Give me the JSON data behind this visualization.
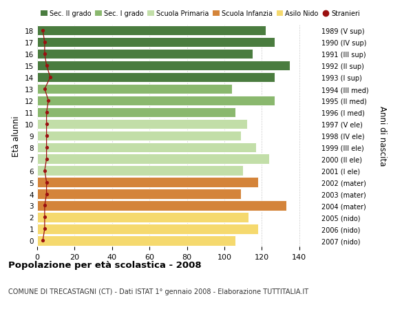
{
  "ages": [
    0,
    1,
    2,
    3,
    4,
    5,
    6,
    7,
    8,
    9,
    10,
    11,
    12,
    13,
    14,
    15,
    16,
    17,
    18
  ],
  "values": [
    106,
    118,
    113,
    133,
    109,
    118,
    110,
    124,
    117,
    109,
    112,
    106,
    127,
    104,
    127,
    135,
    115,
    127,
    122
  ],
  "stranieri": [
    3,
    4,
    4,
    4,
    5,
    5,
    4,
    5,
    5,
    5,
    5,
    5,
    6,
    4,
    7,
    5,
    4,
    4,
    3
  ],
  "bar_colors": [
    "#f5d96e",
    "#f5d96e",
    "#f5d96e",
    "#d4843a",
    "#d4843a",
    "#d4843a",
    "#c2dea8",
    "#c2dea8",
    "#c2dea8",
    "#c2dea8",
    "#c2dea8",
    "#8ab86e",
    "#8ab86e",
    "#8ab86e",
    "#4a7c3f",
    "#4a7c3f",
    "#4a7c3f",
    "#4a7c3f",
    "#4a7c3f"
  ],
  "right_labels_ordered": [
    "2007 (nido)",
    "2006 (nido)",
    "2005 (nido)",
    "2004 (mater)",
    "2003 (mater)",
    "2002 (mater)",
    "2001 (I ele)",
    "2000 (II ele)",
    "1999 (III ele)",
    "1998 (IV ele)",
    "1997 (V ele)",
    "1996 (I med)",
    "1995 (II med)",
    "1994 (III med)",
    "1993 (I sup)",
    "1992 (II sup)",
    "1991 (III sup)",
    "1990 (IV sup)",
    "1989 (V sup)"
  ],
  "legend_labels": [
    "Sec. II grado",
    "Sec. I grado",
    "Scuola Primaria",
    "Scuola Infanzia",
    "Asilo Nido",
    "Stranieri"
  ],
  "legend_colors": [
    "#4a7c3f",
    "#8ab86e",
    "#c2dea8",
    "#d4843a",
    "#f5d96e",
    "#9b1010"
  ],
  "ylabel": "Età alunni",
  "right_ylabel": "Anni di nascita",
  "title": "Popolazione per età scolastica - 2008",
  "subtitle": "COMUNE DI TRECASTAGNI (CT) - Dati ISTAT 1° gennaio 2008 - Elaborazione TUTTITALIA.IT",
  "xlim": [
    0,
    150
  ],
  "xticks": [
    0,
    20,
    40,
    60,
    80,
    100,
    120,
    140
  ],
  "bar_edge_color": "#ffffff",
  "grid_color": "#cccccc",
  "stranieri_color": "#9b1010"
}
